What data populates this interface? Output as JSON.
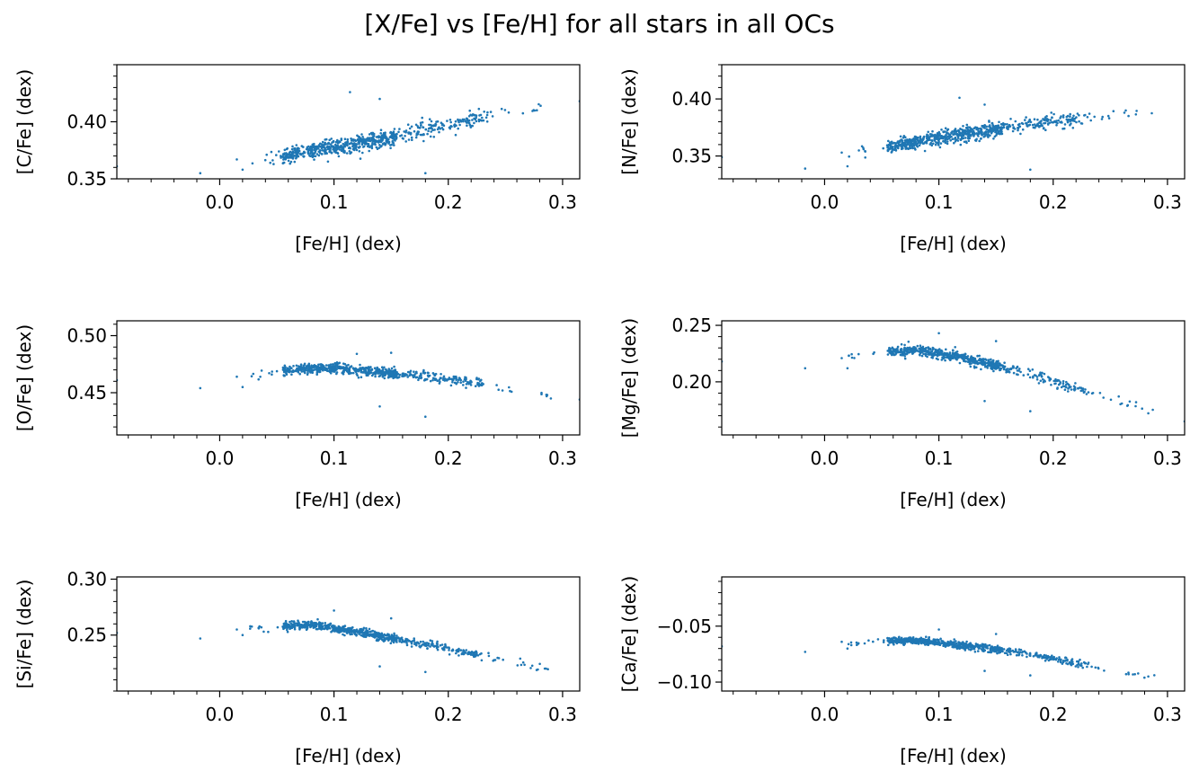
{
  "title": "[X/Fe] vs [Fe/H] for all stars in all OCs",
  "marker_color": "#1f77b4",
  "chart_data": [
    {
      "type": "scatter",
      "xlabel": "[Fe/H] (dex)",
      "ylabel": "[C/Fe] (dex)",
      "xlim": [
        -0.09,
        0.315
      ],
      "ylim": [
        0.35,
        0.45
      ],
      "xticks": [
        0.0,
        0.1,
        0.2,
        0.3
      ],
      "xtick_labels": [
        "0.0",
        "0.1",
        "0.2",
        "0.3"
      ],
      "yticks": [
        0.35,
        0.4
      ],
      "ytick_labels": [
        "0.35",
        "0.40"
      ],
      "trend": [
        [
          0.02,
          0.366
        ],
        [
          0.06,
          0.37
        ],
        [
          0.1,
          0.378
        ],
        [
          0.15,
          0.386
        ],
        [
          0.2,
          0.397
        ],
        [
          0.25,
          0.408
        ],
        [
          0.29,
          0.414
        ]
      ],
      "spread": 0.0035,
      "outliers": [
        [
          -0.09,
          0.361
        ],
        [
          -0.017,
          0.355
        ],
        [
          0.015,
          0.367
        ],
        [
          0.02,
          0.358
        ],
        [
          0.114,
          0.426
        ],
        [
          0.18,
          0.355
        ],
        [
          0.14,
          0.42
        ],
        [
          0.315,
          0.418
        ]
      ]
    },
    {
      "type": "scatter",
      "xlabel": "[Fe/H] (dex)",
      "ylabel": "[N/Fe] (dex)",
      "xlim": [
        -0.09,
        0.315
      ],
      "ylim": [
        0.33,
        0.43
      ],
      "xticks": [
        0.0,
        0.1,
        0.2,
        0.3
      ],
      "xtick_labels": [
        "0.0",
        "0.1",
        "0.2",
        "0.3"
      ],
      "yticks": [
        0.35,
        0.4
      ],
      "ytick_labels": [
        "0.35",
        "0.40"
      ],
      "trend": [
        [
          0.02,
          0.352
        ],
        [
          0.06,
          0.359
        ],
        [
          0.1,
          0.366
        ],
        [
          0.15,
          0.373
        ],
        [
          0.2,
          0.38
        ],
        [
          0.25,
          0.386
        ],
        [
          0.29,
          0.39
        ]
      ],
      "spread": 0.003,
      "outliers": [
        [
          -0.017,
          0.339
        ],
        [
          0.015,
          0.353
        ],
        [
          0.02,
          0.341
        ],
        [
          0.118,
          0.401
        ],
        [
          0.18,
          0.338
        ],
        [
          0.14,
          0.395
        ],
        [
          -0.09,
          0.349
        ]
      ]
    },
    {
      "type": "scatter",
      "xlabel": "[Fe/H] (dex)",
      "ylabel": "[O/Fe] (dex)",
      "xlim": [
        -0.09,
        0.315
      ],
      "ylim": [
        0.413,
        0.513
      ],
      "xticks": [
        0.0,
        0.1,
        0.2,
        0.3
      ],
      "xtick_labels": [
        "0.0",
        "0.1",
        "0.2",
        "0.3"
      ],
      "yticks": [
        0.45,
        0.5
      ],
      "ytick_labels": [
        "0.45",
        "0.50"
      ],
      "trend": [
        [
          0.02,
          0.465
        ],
        [
          0.06,
          0.47
        ],
        [
          0.1,
          0.472
        ],
        [
          0.15,
          0.467
        ],
        [
          0.2,
          0.462
        ],
        [
          0.25,
          0.455
        ],
        [
          0.29,
          0.447
        ]
      ],
      "spread": 0.0022,
      "outliers": [
        [
          -0.09,
          0.461
        ],
        [
          -0.017,
          0.454
        ],
        [
          0.015,
          0.464
        ],
        [
          0.02,
          0.455
        ],
        [
          0.14,
          0.438
        ],
        [
          0.18,
          0.429
        ],
        [
          0.15,
          0.485
        ],
        [
          0.12,
          0.484
        ],
        [
          0.315,
          0.444
        ]
      ]
    },
    {
      "type": "scatter",
      "xlabel": "[Fe/H] (dex)",
      "ylabel": "[Mg/Fe] (dex)",
      "xlim": [
        -0.09,
        0.315
      ],
      "ylim": [
        0.153,
        0.254
      ],
      "xticks": [
        0.0,
        0.1,
        0.2,
        0.3
      ],
      "xtick_labels": [
        "0.0",
        "0.1",
        "0.2",
        "0.3"
      ],
      "yticks": [
        0.2,
        0.25
      ],
      "ytick_labels": [
        "0.20",
        "0.25"
      ],
      "trend": [
        [
          0.02,
          0.222
        ],
        [
          0.05,
          0.226
        ],
        [
          0.08,
          0.228
        ],
        [
          0.12,
          0.222
        ],
        [
          0.16,
          0.212
        ],
        [
          0.2,
          0.2
        ],
        [
          0.25,
          0.186
        ],
        [
          0.29,
          0.173
        ]
      ],
      "spread": 0.0022,
      "outliers": [
        [
          -0.09,
          0.218
        ],
        [
          -0.017,
          0.212
        ],
        [
          0.015,
          0.221
        ],
        [
          0.02,
          0.212
        ],
        [
          0.14,
          0.183
        ],
        [
          0.18,
          0.174
        ],
        [
          0.1,
          0.243
        ],
        [
          0.15,
          0.236
        ],
        [
          0.315,
          0.165
        ]
      ]
    },
    {
      "type": "scatter",
      "xlabel": "[Fe/H] (dex)",
      "ylabel": "[Si/Fe] (dex)",
      "xlim": [
        -0.09,
        0.315
      ],
      "ylim": [
        0.2,
        0.302
      ],
      "xticks": [
        0.0,
        0.1,
        0.2,
        0.3
      ],
      "xtick_labels": [
        "0.0",
        "0.1",
        "0.2",
        "0.3"
      ],
      "yticks": [
        0.25,
        0.3
      ],
      "ytick_labels": [
        "0.25",
        "0.30"
      ],
      "trend": [
        [
          0.02,
          0.255
        ],
        [
          0.05,
          0.258
        ],
        [
          0.08,
          0.259
        ],
        [
          0.12,
          0.253
        ],
        [
          0.16,
          0.245
        ],
        [
          0.2,
          0.238
        ],
        [
          0.25,
          0.227
        ],
        [
          0.29,
          0.218
        ]
      ],
      "spread": 0.0018,
      "outliers": [
        [
          -0.09,
          0.252
        ],
        [
          -0.017,
          0.247
        ],
        [
          0.015,
          0.255
        ],
        [
          0.02,
          0.25
        ],
        [
          0.14,
          0.222
        ],
        [
          0.18,
          0.217
        ],
        [
          0.1,
          0.272
        ],
        [
          0.15,
          0.265
        ]
      ]
    },
    {
      "type": "scatter",
      "xlabel": "[Fe/H] (dex)",
      "ylabel": "[Ca/Fe] (dex)",
      "xlim": [
        -0.09,
        0.315
      ],
      "ylim": [
        -0.108,
        -0.006
      ],
      "xticks": [
        0.0,
        0.1,
        0.2,
        0.3
      ],
      "xtick_labels": [
        "0.0",
        "0.1",
        "0.2",
        "0.3"
      ],
      "yticks": [
        -0.1,
        -0.05
      ],
      "ytick_labels": [
        "−0.10",
        "−0.05"
      ],
      "trend": [
        [
          0.02,
          -0.065
        ],
        [
          0.05,
          -0.063
        ],
        [
          0.08,
          -0.063
        ],
        [
          0.12,
          -0.067
        ],
        [
          0.16,
          -0.072
        ],
        [
          0.2,
          -0.079
        ],
        [
          0.25,
          -0.088
        ],
        [
          0.29,
          -0.096
        ]
      ],
      "spread": 0.0015,
      "outliers": [
        [
          -0.09,
          -0.068
        ],
        [
          -0.017,
          -0.073
        ],
        [
          0.015,
          -0.064
        ],
        [
          0.02,
          -0.07
        ],
        [
          0.14,
          -0.09
        ],
        [
          0.18,
          -0.094
        ],
        [
          0.1,
          -0.053
        ],
        [
          0.15,
          -0.057
        ]
      ]
    }
  ]
}
